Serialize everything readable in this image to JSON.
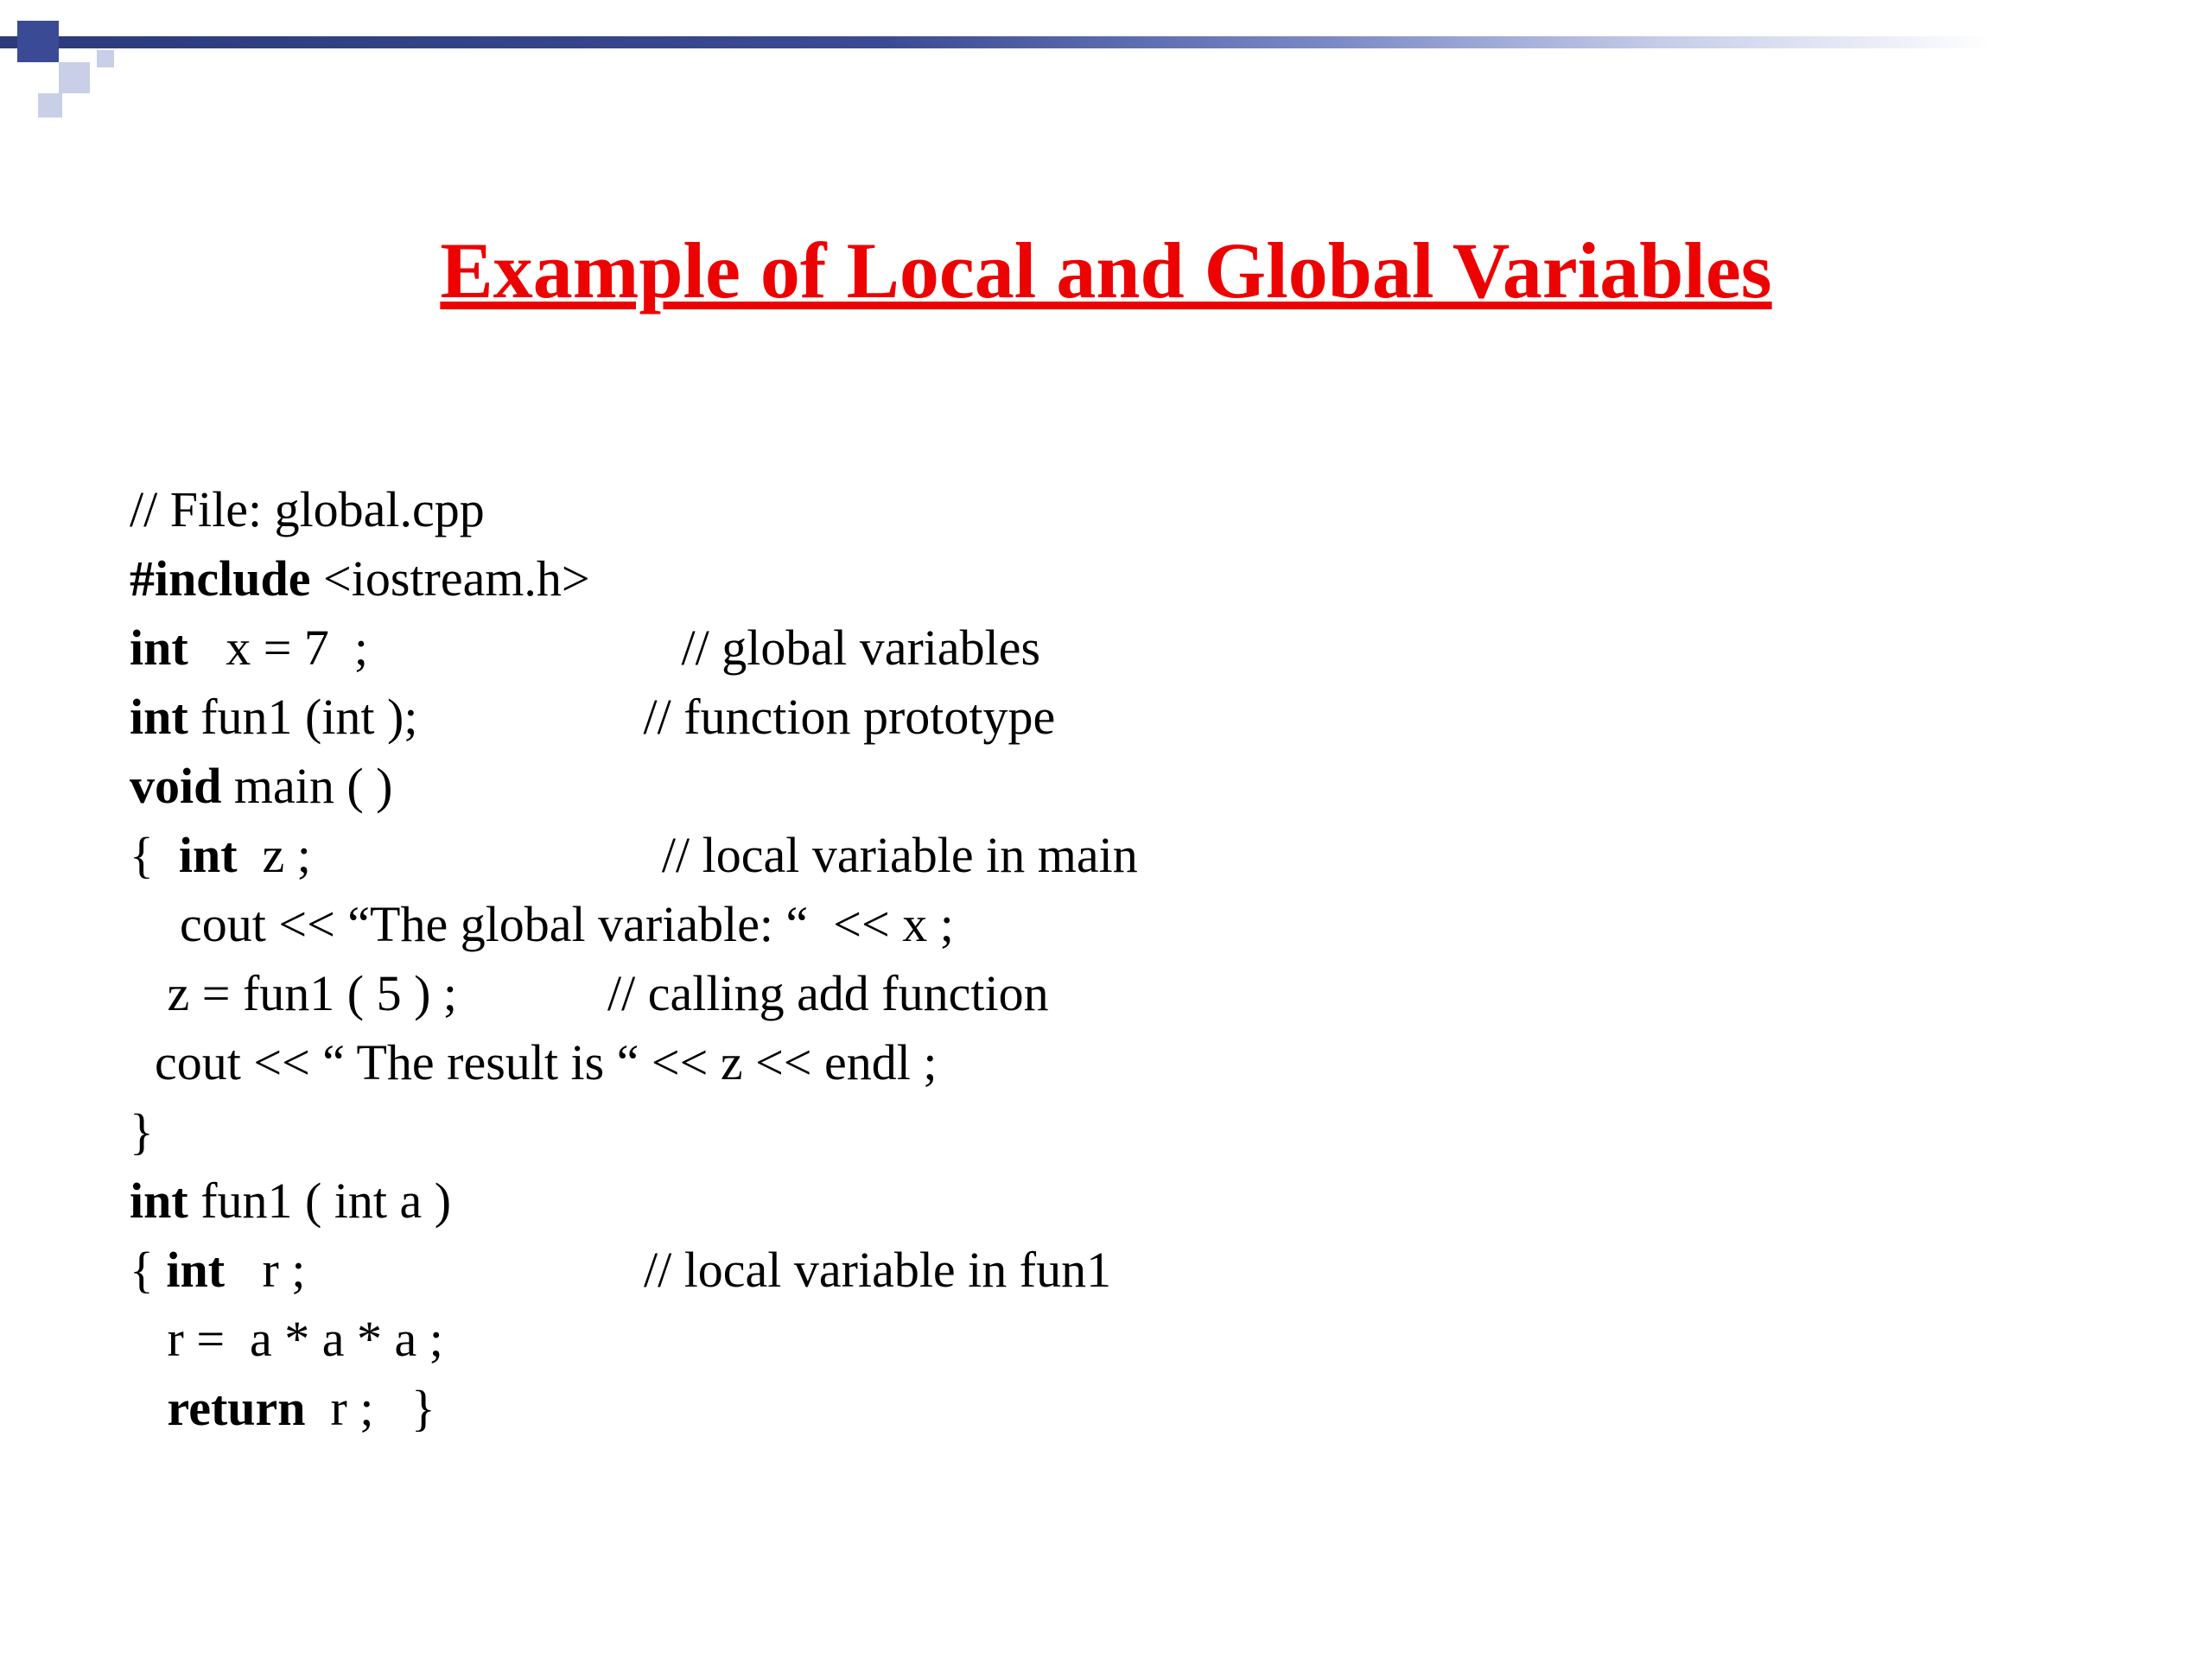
{
  "slide": {
    "title": "Example of Local and Global Variables",
    "title_color": "#ed0202",
    "title_fontsize": 92,
    "title_underline": true,
    "background_color": "#ffffff",
    "decoration": {
      "gradient_colors": [
        "#2c3a7a",
        "#3a4a95",
        "#7a88c5",
        "#c5cce8",
        "#ffffff"
      ],
      "square_dark_color": "#3b4a94",
      "square_light_color": "#c8cfe6"
    },
    "code": {
      "font_family": "Times New Roman",
      "fontsize": 58,
      "text_color": "#000000",
      "lines": [
        {
          "segments": [
            {
              "text": "// File: global.cpp",
              "bold": false
            }
          ]
        },
        {
          "segments": [
            {
              "text": "#include",
              "bold": true
            },
            {
              "text": " <iostream.h>",
              "bold": false
            }
          ]
        },
        {
          "segments": [
            {
              "text": "int",
              "bold": true
            },
            {
              "text": "   x = 7  ;                         // global variables",
              "bold": false
            }
          ]
        },
        {
          "segments": [
            {
              "text": "int",
              "bold": true
            },
            {
              "text": " fun1 (int );                  // function prototype",
              "bold": false
            }
          ]
        },
        {
          "segments": [
            {
              "text": "void",
              "bold": true
            },
            {
              "text": " main ( )",
              "bold": false
            }
          ]
        },
        {
          "segments": [
            {
              "text": "{  ",
              "bold": false
            },
            {
              "text": "int",
              "bold": true
            },
            {
              "text": "  z ;                            // local variable in main",
              "bold": false
            }
          ]
        },
        {
          "segments": [
            {
              "text": "    cout << “The global variable: “  << x ;",
              "bold": false
            }
          ]
        },
        {
          "segments": [
            {
              "text": "   z = fun1 ( 5 ) ;            // calling add function",
              "bold": false
            }
          ]
        },
        {
          "segments": [
            {
              "text": "  cout << “ The result is “ << z << endl ;",
              "bold": false
            }
          ]
        },
        {
          "segments": [
            {
              "text": "}",
              "bold": false
            }
          ]
        },
        {
          "segments": [
            {
              "text": "int",
              "bold": true
            },
            {
              "text": " fun1 ( int a )",
              "bold": false
            }
          ]
        },
        {
          "segments": [
            {
              "text": "{ ",
              "bold": false
            },
            {
              "text": "int",
              "bold": true
            },
            {
              "text": "   r ;                           // local variable in fun1",
              "bold": false
            }
          ]
        },
        {
          "segments": [
            {
              "text": "   r =  a * a * a ;",
              "bold": false
            }
          ]
        },
        {
          "segments": [
            {
              "text": "   ",
              "bold": false
            },
            {
              "text": "return",
              "bold": true
            },
            {
              "text": "  r ;   }",
              "bold": false
            }
          ]
        }
      ]
    }
  }
}
